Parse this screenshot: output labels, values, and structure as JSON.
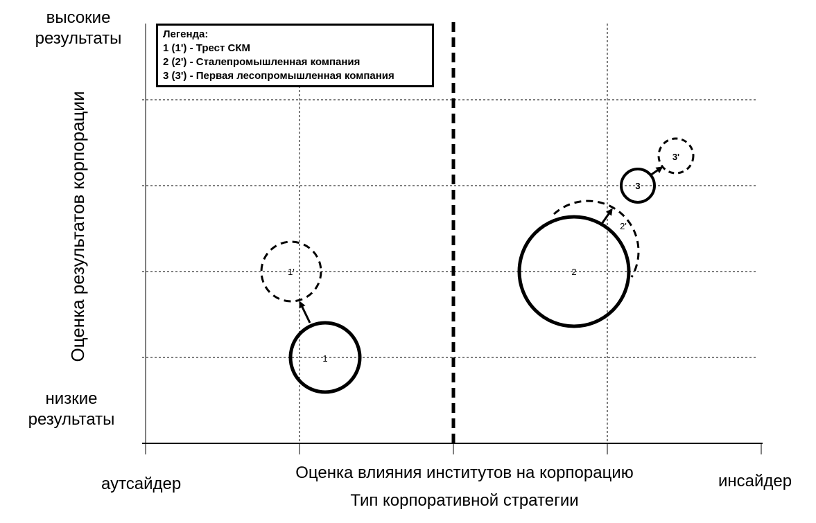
{
  "y_axis": {
    "title": "Оценка результатов корпорации",
    "top_label": "высокие результаты",
    "top_label_lines": [
      "высокие",
      "результаты"
    ],
    "bottom_label_lines": [
      "низкие",
      "результаты"
    ]
  },
  "x_axis": {
    "title": "Оценка влияния институтов на корпорацию",
    "subtitle": "Тип корпоративной стратегии",
    "left_label": "аутсайдер",
    "right_label": "инсайдер"
  },
  "legend": {
    "title": "Легенда:",
    "items": [
      "1 (1') - Трест СКМ",
      "2 (2') - Сталепромышленная компания",
      "3 (3') - Первая лесопромышленная компания"
    ]
  },
  "circles": [
    {
      "label": "1",
      "style": "solid"
    },
    {
      "label": "1'",
      "style": "dashed"
    },
    {
      "label": "2",
      "style": "solid"
    },
    {
      "label": "2'",
      "style": "dashed"
    },
    {
      "label": "3",
      "style": "solid"
    },
    {
      "label": "3'",
      "style": "dashed"
    }
  ],
  "arrows": [
    {
      "from": "1",
      "to": "1'"
    },
    {
      "from": "2",
      "to": "2'"
    },
    {
      "from": "3",
      "to": "3'"
    }
  ],
  "colors": {
    "line": "#000000",
    "grid": "#000000",
    "background": "#ffffff"
  }
}
